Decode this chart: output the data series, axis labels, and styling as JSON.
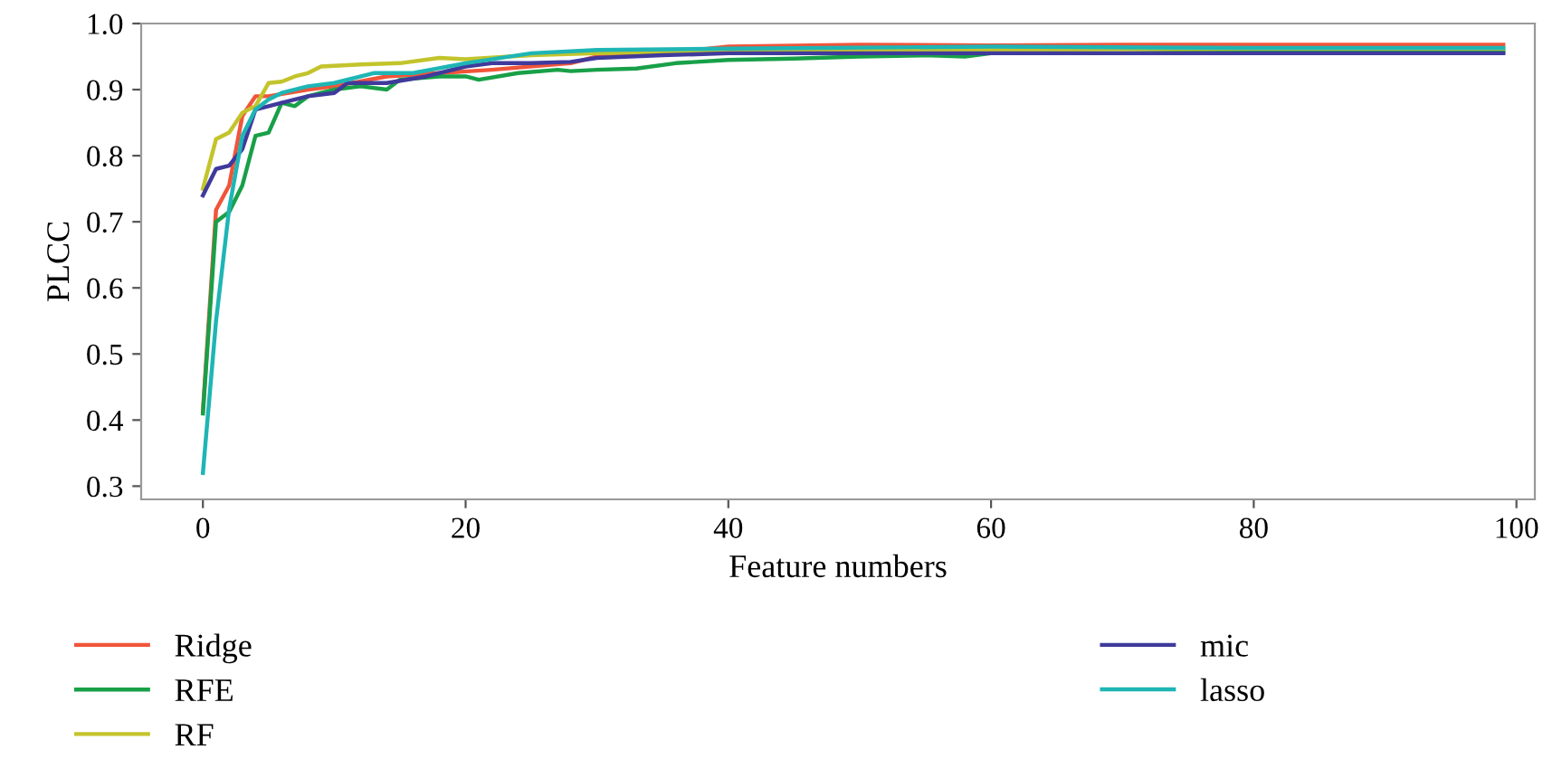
{
  "chart_data": {
    "type": "line",
    "xlabel": "Feature numbers",
    "ylabel": "PLCC",
    "xlim": [
      -4.7,
      101.4
    ],
    "ylim": [
      0.28,
      1.0
    ],
    "xticks": [
      0,
      20,
      40,
      60,
      80,
      100
    ],
    "yticks": [
      0.3,
      0.4,
      0.5,
      0.6,
      0.7,
      0.8,
      0.9,
      {
        "value": 1.0,
        "label": "1.0"
      }
    ],
    "grid": false,
    "legend": "bottom",
    "marker": "none",
    "line_style": "solid",
    "series": [
      {
        "name": "Ridge",
        "color": "#f0553a",
        "x": [
          0,
          1,
          2,
          3,
          4,
          5,
          8,
          10,
          14,
          18,
          22,
          28,
          30,
          35,
          40,
          50,
          60,
          70,
          80,
          90,
          99
        ],
        "values": [
          0.414,
          0.718,
          0.755,
          0.86,
          0.89,
          0.89,
          0.9,
          0.905,
          0.92,
          0.925,
          0.93,
          0.94,
          0.95,
          0.955,
          0.965,
          0.968,
          0.967,
          0.968,
          0.968,
          0.968,
          0.968
        ]
      },
      {
        "name": "RFE",
        "color": "#18a048",
        "x": [
          0,
          1,
          2,
          3,
          4,
          5,
          6,
          7,
          8,
          9,
          10,
          12,
          14,
          15,
          18,
          20,
          21,
          24,
          27,
          28,
          30,
          33,
          36,
          40,
          45,
          50,
          55,
          58,
          60,
          70,
          80,
          90,
          99
        ],
        "values": [
          0.41,
          0.7,
          0.715,
          0.755,
          0.83,
          0.835,
          0.88,
          0.875,
          0.89,
          0.895,
          0.9,
          0.905,
          0.9,
          0.915,
          0.92,
          0.92,
          0.915,
          0.925,
          0.93,
          0.928,
          0.93,
          0.932,
          0.94,
          0.945,
          0.947,
          0.95,
          0.952,
          0.95,
          0.955,
          0.955,
          0.957,
          0.958,
          0.957
        ]
      },
      {
        "name": "RF",
        "color": "#c3c42c",
        "x": [
          0,
          1,
          2,
          3,
          4,
          5,
          6,
          7,
          8,
          9,
          12,
          15,
          18,
          20,
          25,
          30,
          40,
          60,
          80,
          99
        ],
        "values": [
          0.75,
          0.825,
          0.835,
          0.865,
          0.875,
          0.91,
          0.912,
          0.92,
          0.925,
          0.935,
          0.938,
          0.94,
          0.948,
          0.946,
          0.952,
          0.955,
          0.958,
          0.96,
          0.962,
          0.962
        ]
      },
      {
        "name": "mic",
        "color": "#3f3a9c",
        "x": [
          0,
          1,
          2,
          3,
          4,
          5,
          6,
          8,
          10,
          11,
          14,
          17,
          20,
          22,
          25,
          28,
          30,
          35,
          40,
          50,
          60,
          70,
          80,
          99
        ],
        "values": [
          0.74,
          0.78,
          0.785,
          0.81,
          0.87,
          0.875,
          0.88,
          0.89,
          0.895,
          0.91,
          0.91,
          0.92,
          0.935,
          0.94,
          0.94,
          0.942,
          0.948,
          0.952,
          0.955,
          0.955,
          0.955,
          0.955,
          0.955,
          0.955
        ]
      },
      {
        "name": "lasso",
        "color": "#1fb5b5",
        "x": [
          0,
          1,
          2,
          3,
          4,
          5,
          6,
          8,
          10,
          13,
          16,
          20,
          25,
          30,
          40,
          60,
          80,
          99
        ],
        "values": [
          0.32,
          0.55,
          0.72,
          0.83,
          0.87,
          0.885,
          0.895,
          0.905,
          0.91,
          0.925,
          0.925,
          0.94,
          0.955,
          0.96,
          0.962,
          0.965,
          0.963,
          0.963
        ]
      }
    ]
  }
}
